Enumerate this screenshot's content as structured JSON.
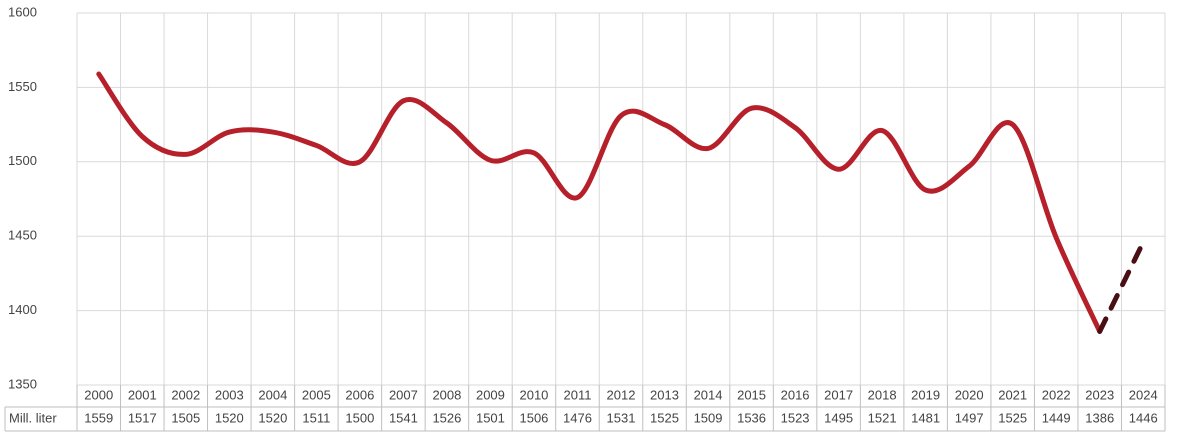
{
  "chart_data": {
    "type": "line",
    "categories": [
      "2000",
      "2001",
      "2002",
      "2003",
      "2004",
      "2005",
      "2006",
      "2007",
      "2008",
      "2009",
      "2010",
      "2011",
      "2012",
      "2013",
      "2014",
      "2015",
      "2016",
      "2017",
      "2018",
      "2019",
      "2020",
      "2021",
      "2022",
      "2023",
      "2024"
    ],
    "series": [
      {
        "name": "Mill. liter",
        "color": "#b5202a",
        "dash": false,
        "values": [
          1559,
          1517,
          1505,
          1520,
          1520,
          1511,
          1500,
          1541,
          1526,
          1501,
          1506,
          1476,
          1531,
          1525,
          1509,
          1536,
          1523,
          1495,
          1521,
          1481,
          1497,
          1525,
          1449,
          1386,
          null
        ]
      },
      {
        "color": "#4a0f14",
        "dash": true,
        "values": [
          null,
          null,
          null,
          null,
          null,
          null,
          null,
          null,
          null,
          null,
          null,
          null,
          null,
          null,
          null,
          null,
          null,
          null,
          null,
          null,
          null,
          null,
          null,
          1386,
          1446
        ]
      }
    ],
    "ylim": [
      1350,
      1600
    ],
    "yticks": [
      1350,
      1400,
      1450,
      1500,
      1550,
      1600
    ],
    "grid": true,
    "data_table": true
  }
}
